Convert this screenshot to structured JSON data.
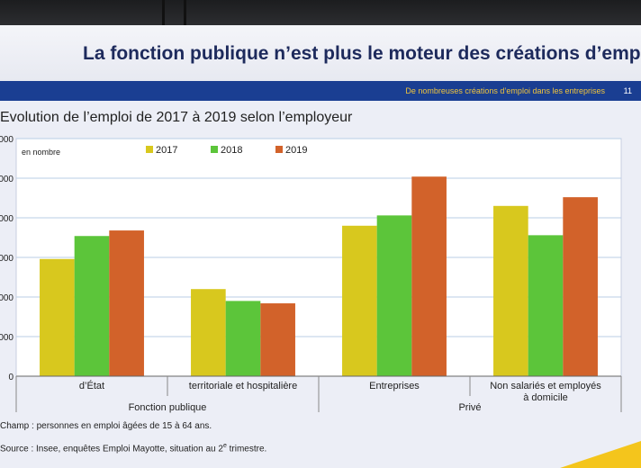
{
  "slide": {
    "title": "La fonction publique n’est plus le moteur des créations d’emplois",
    "band_text": "De nombreuses créations d’emploi dans les entreprises",
    "page_number": "11"
  },
  "chart_data": {
    "type": "bar",
    "title": "Evolution de l’emploi de 2017 à 2019 selon l’employeur",
    "unit_label": "en nombre",
    "categories": [
      "d’État",
      "territoriale et hospitalière",
      "Entreprises",
      "Non salariés et employés à domicile"
    ],
    "groups": [
      {
        "label": "Fonction publique",
        "span": [
          0,
          1
        ]
      },
      {
        "label": "Privé",
        "span": [
          2,
          3
        ]
      }
    ],
    "series": [
      {
        "name": "2017",
        "color": "#d8c81e",
        "values": [
          1480,
          1100,
          1900,
          2150
        ]
      },
      {
        "name": "2018",
        "color": "#5cc53a",
        "values": [
          1770,
          950,
          2030,
          1780
        ]
      },
      {
        "name": "2019",
        "color": "#d2622a",
        "values": [
          1840,
          920,
          2520,
          2260
        ]
      }
    ],
    "y_ticks": [
      "0",
      "000",
      "000",
      "000",
      "000",
      "000",
      "000"
    ],
    "ylim": [
      0,
      3000
    ],
    "grid": true,
    "legend": "top"
  },
  "notes": {
    "champ": "Champ : personnes en emploi âgées de 15 à 64 ans.",
    "source_prefix": "Source : Insee, enquêtes Emploi Mayotte, situation au 2",
    "source_sup": "e",
    "source_suffix": " trimestre."
  }
}
